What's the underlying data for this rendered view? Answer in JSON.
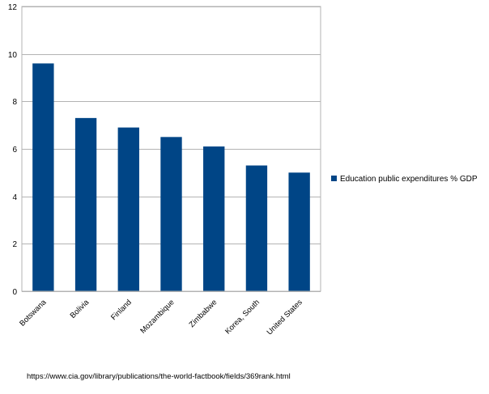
{
  "chart_data": {
    "type": "bar",
    "categories": [
      "Botswana",
      "Bolivia",
      "Finland",
      "Mozambique",
      "Zimbabwe",
      "Korea, South",
      "United States"
    ],
    "series": [
      {
        "name": "Education public expenditures % GDP",
        "values": [
          9.6,
          7.3,
          6.9,
          6.5,
          6.1,
          5.3,
          5.0
        ],
        "color": "#004586"
      }
    ],
    "ylim": [
      0,
      12
    ],
    "yticks": [
      0,
      2,
      4,
      6,
      8,
      10,
      12
    ],
    "grid": true,
    "legend_position": "right"
  },
  "source_note": "https://www.cia.gov/library/publications/the-world-factbook/fields/369rank.html"
}
